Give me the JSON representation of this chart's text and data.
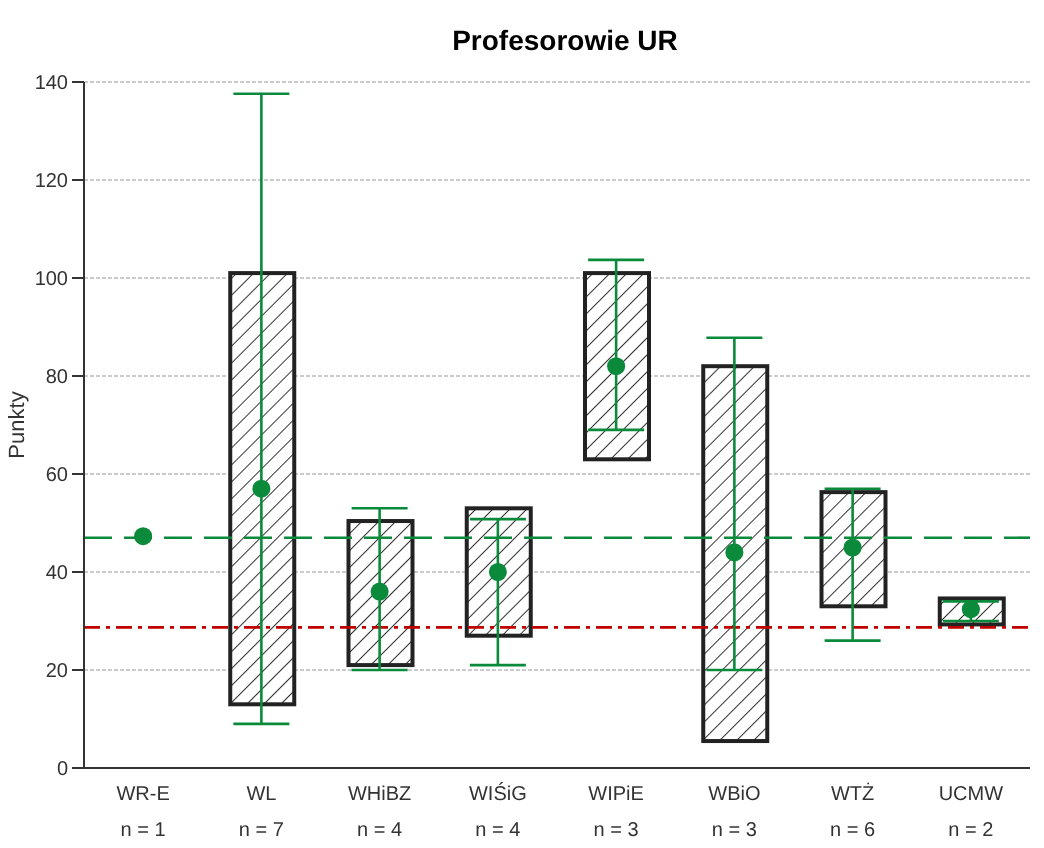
{
  "chart_data": {
    "type": "bar",
    "title": "Profesorowie UR",
    "ylabel": "Punkty",
    "categories": [
      "WR-E\nn = 1",
      "WL\nn = 7",
      "WHiBZ\nn = 4",
      "WIŚiG\nn = 4",
      "WIPiE\nn = 3",
      "WBiO\nn = 3",
      "WTŻ\nn = 6",
      "UCMW\nn = 2"
    ],
    "ylim": [
      0,
      140
    ],
    "yticks": [
      0,
      20,
      40,
      60,
      80,
      100,
      120,
      140
    ],
    "grid": "y",
    "legend": false,
    "series": [
      {
        "color": "#222222",
        "base": [
          null,
          13,
          21,
          27,
          63,
          5.5,
          33,
          29.3
        ],
        "values": [
          null,
          88,
          29.4,
          26,
          38,
          76.5,
          23.3,
          5.3
        ]
      },
      {
        "type": "scatter",
        "color": "#0a8a3a",
        "marker": "circle",
        "values": [
          47.3,
          57,
          36,
          40,
          82,
          44,
          45,
          32.4
        ],
        "errors": [
          null,
          [
            9,
            137.6
          ],
          [
            20,
            53
          ],
          [
            21,
            50.8
          ],
          [
            69,
            103.7
          ],
          [
            20,
            87.8
          ],
          [
            26,
            57
          ],
          [
            30,
            34
          ]
        ]
      }
    ],
    "ref_lines": [
      {
        "axis": "y",
        "value": 47,
        "color": "#0a8a3a",
        "line_style": "dashed"
      },
      {
        "axis": "y",
        "value": 28.7,
        "color": "#c00000",
        "line_style": "dashdot"
      }
    ]
  }
}
